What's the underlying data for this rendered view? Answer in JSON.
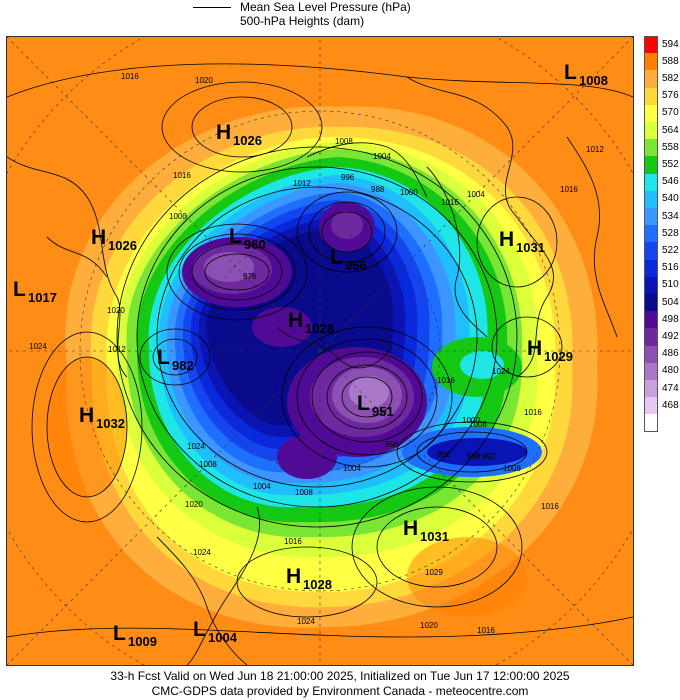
{
  "legend": {
    "mslp_label": "Mean Sea Level Pressure (hPa)",
    "heights_label": "500-hPa Heights (dam)"
  },
  "colorbar": {
    "levels": [
      {
        "label": "594",
        "color": "#ff0000"
      },
      {
        "label": "588",
        "color": "#ff8000"
      },
      {
        "label": "582",
        "color": "#ffae3c"
      },
      {
        "label": "576",
        "color": "#ffd93c"
      },
      {
        "label": "570",
        "color": "#ffff44"
      },
      {
        "label": "564",
        "color": "#dcff3c"
      },
      {
        "label": "558",
        "color": "#78e632"
      },
      {
        "label": "552",
        "color": "#14c814"
      },
      {
        "label": "546",
        "color": "#1ee6e6"
      },
      {
        "label": "540",
        "color": "#1ebeff"
      },
      {
        "label": "534",
        "color": "#3c96ff"
      },
      {
        "label": "528",
        "color": "#1e6eff"
      },
      {
        "label": "522",
        "color": "#1446f0"
      },
      {
        "label": "516",
        "color": "#0a28dc"
      },
      {
        "label": "510",
        "color": "#0a14b4"
      },
      {
        "label": "504",
        "color": "#0a0a8c"
      },
      {
        "label": "498",
        "color": "#500a96"
      },
      {
        "label": "492",
        "color": "#6e28a0"
      },
      {
        "label": "486",
        "color": "#8c50b4"
      },
      {
        "label": "480",
        "color": "#aa78c8"
      },
      {
        "label": "474",
        "color": "#c8a0dc"
      },
      {
        "label": "468",
        "color": "#e6c8f0"
      },
      {
        "label": "",
        "color": "#ffffff"
      }
    ]
  },
  "pressure_systems": [
    {
      "type": "L",
      "value": "1008"
    },
    {
      "type": "H",
      "value": "1026"
    },
    {
      "type": "H",
      "value": "1026"
    },
    {
      "type": "L",
      "value": "960"
    },
    {
      "type": "L",
      "value": "956"
    },
    {
      "type": "H",
      "value": "1031"
    },
    {
      "type": "L",
      "value": "1017"
    },
    {
      "type": "H",
      "value": "1029"
    },
    {
      "type": "H",
      "value": "1028"
    },
    {
      "type": "L",
      "value": "982"
    },
    {
      "type": "L",
      "value": "951"
    },
    {
      "type": "H",
      "value": "1032"
    },
    {
      "type": "H",
      "value": "1031"
    },
    {
      "type": "H",
      "value": "1028"
    },
    {
      "type": "L",
      "value": "1009"
    },
    {
      "type": "L",
      "value": "1004"
    }
  ],
  "isobar_labels": [
    "1016",
    "1020",
    "1008",
    "1004",
    "1016",
    "1012",
    "996",
    "988",
    "1000",
    "1016",
    "1004",
    "1012",
    "1016",
    "1000",
    "976",
    "1020",
    "1024",
    "1012",
    "1024",
    "1016",
    "1016",
    "1024",
    "1008",
    "1008",
    "1004",
    "992",
    "988",
    "1000",
    "992",
    "1008",
    "1020",
    "1004",
    "1016",
    "1024",
    "1016",
    "1029",
    "1020",
    "1024",
    "1016",
    "1008",
    "956"
  ],
  "footer": {
    "line1": "33-h Fcst Valid on Wed Jun 18 21:00:00 2025, Initialized on Tue Jun 17 12:00:00 2025",
    "line2": "CMC-GDPS data provided by Environment Canada - meteocentre.com"
  }
}
